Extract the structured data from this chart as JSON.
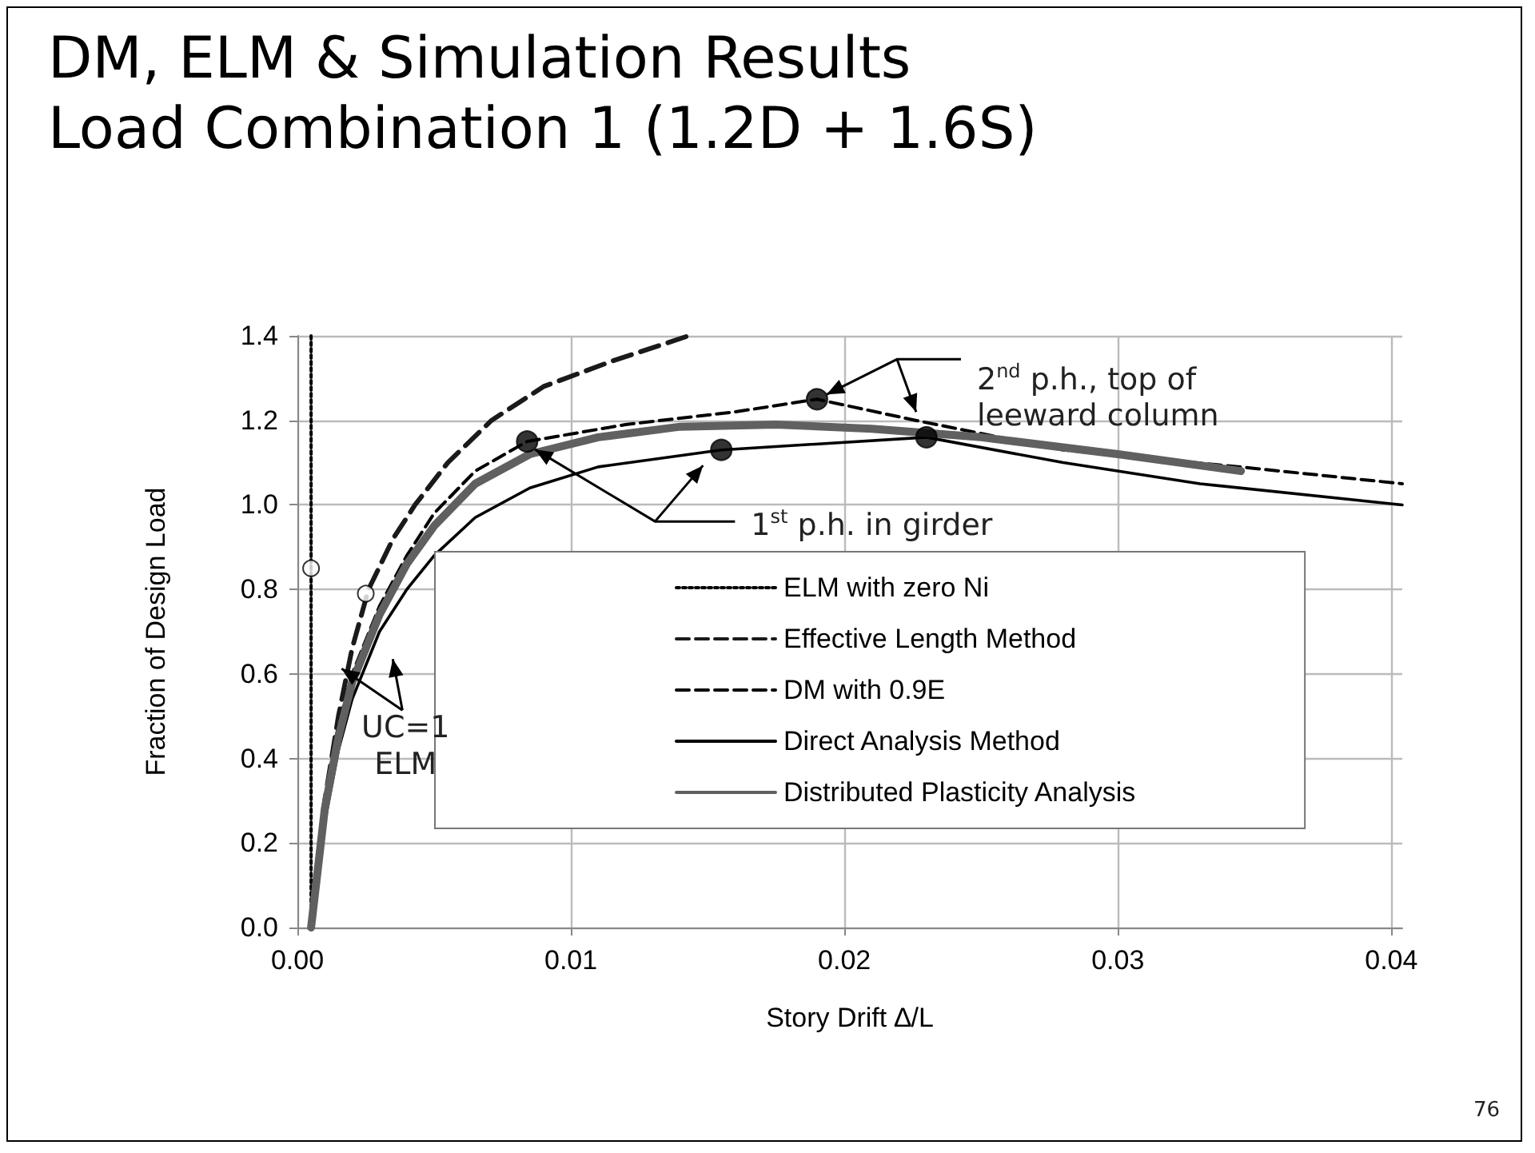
{
  "chart_data": {
    "type": "line",
    "title": "DM, ELM & Simulation Results",
    "subtitle": "Load Combination 1 (1.2D + 1.6S)",
    "xlabel": "Story Drift ∆/L",
    "ylabel": "Fraction of Design Load",
    "xlim": [
      0,
      0.0404
    ],
    "ylim": [
      0,
      1.4
    ],
    "xticks": [
      {
        "value": 0,
        "label": "0.00"
      },
      {
        "value": 0.01,
        "label": "0.01"
      },
      {
        "value": 0.02,
        "label": "0.02"
      },
      {
        "value": 0.03,
        "label": "0.03"
      },
      {
        "value": 0.04,
        "label": "0.04"
      }
    ],
    "yticks": [
      {
        "value": 0,
        "label": "0.0"
      },
      {
        "value": 0.2,
        "label": "0.2"
      },
      {
        "value": 0.4,
        "label": "0.4"
      },
      {
        "value": 0.6,
        "label": "0.6"
      },
      {
        "value": 0.8,
        "label": "0.8"
      },
      {
        "value": 1.0,
        "label": "1.0"
      },
      {
        "value": 1.2,
        "label": "1.2"
      },
      {
        "value": 1.4,
        "label": "1.4"
      }
    ],
    "grid": true,
    "legend": "bottom right",
    "marker": "none",
    "series": [
      {
        "name": "ELM with zero Ni",
        "color": "#000000",
        "line_style": "dotted",
        "x": [
          0.0005,
          0.0005
        ],
        "values": [
          0,
          1.4
        ]
      },
      {
        "name": "Effective Length Method",
        "color": "#1a1a1a",
        "line_style": "dashed",
        "x": [
          0.0005,
          0.001,
          0.0015,
          0.002,
          0.0026,
          0.0035,
          0.0043,
          0.0055,
          0.0071,
          0.009,
          0.0115,
          0.0143
        ],
        "values": [
          0,
          0.3,
          0.5,
          0.66,
          0.8,
          0.92,
          1.0,
          1.1,
          1.2,
          1.28,
          1.34,
          1.4
        ]
      },
      {
        "name": "DM with 0.9E",
        "color": "#000000",
        "line_style": "dashed",
        "x": [
          0.0005,
          0.001,
          0.0015,
          0.002,
          0.003,
          0.004,
          0.005,
          0.0065,
          0.0084,
          0.012,
          0.016,
          0.019,
          0.0226,
          0.028,
          0.0349,
          0.0404
        ],
        "values": [
          0,
          0.3,
          0.48,
          0.6,
          0.76,
          0.88,
          0.98,
          1.08,
          1.15,
          1.19,
          1.22,
          1.25,
          1.2,
          1.13,
          1.087,
          1.05
        ]
      },
      {
        "name": "Direct Analysis Method",
        "color": "#000000",
        "line_style": "solid",
        "x": [
          0.0005,
          0.001,
          0.0015,
          0.002,
          0.003,
          0.004,
          0.005,
          0.0065,
          0.0085,
          0.011,
          0.0155,
          0.023,
          0.028,
          0.033,
          0.0404
        ],
        "values": [
          0,
          0.25,
          0.42,
          0.54,
          0.7,
          0.8,
          0.88,
          0.97,
          1.04,
          1.09,
          1.13,
          1.16,
          1.1,
          1.05,
          1.0
        ]
      },
      {
        "name": "Distributed Plasticity Analysis",
        "color": "#606060",
        "line_style": "solid",
        "x": [
          0.0005,
          0.001,
          0.0015,
          0.002,
          0.003,
          0.004,
          0.005,
          0.0065,
          0.0085,
          0.011,
          0.014,
          0.0175,
          0.021,
          0.025,
          0.03,
          0.0345
        ],
        "values": [
          0,
          0.28,
          0.45,
          0.58,
          0.74,
          0.86,
          0.95,
          1.05,
          1.12,
          1.16,
          1.185,
          1.19,
          1.18,
          1.16,
          1.12,
          1.08
        ]
      },
      {
        "type": "scatter",
        "marker": "circle",
        "color": "#000000",
        "x": [
          0.0084,
          0.019,
          0.0155,
          0.023
        ],
        "values": [
          1.15,
          1.25,
          1.13,
          1.16
        ]
      },
      {
        "type": "scatter",
        "marker": "circle",
        "color": "#ffffff",
        "x": [
          0.0005,
          0.0025
        ],
        "values": [
          0.85,
          0.79
        ]
      }
    ],
    "annotations": [
      {
        "text": "2$^{nd}$ p.h., top of leeward column",
        "x": 0.019,
        "y": 1.25
      },
      {
        "text": "1$^{st}$ p.h. in girder",
        "x": 0.0084,
        "y": 1.15
      },
      {
        "text": "UC=1 ELM",
        "x": 0.0015,
        "y": 0.62
      },
      "76"
    ]
  }
}
